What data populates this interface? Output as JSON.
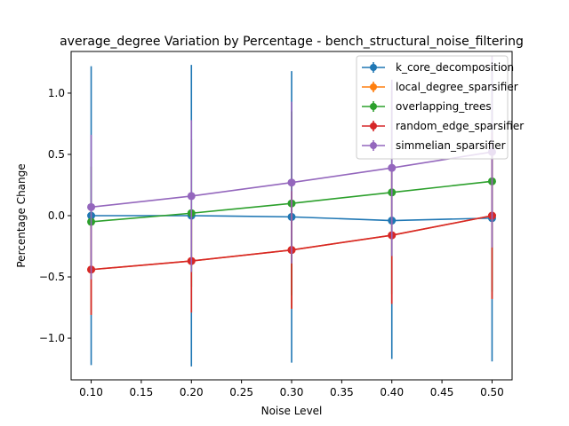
{
  "chart_data": {
    "type": "line",
    "title": "average_degree Variation by Percentage - bench_structural_noise_filtering",
    "xlabel": "Noise Level",
    "ylabel": "Percentage Change",
    "xlim": [
      0.08,
      0.52
    ],
    "ylim": [
      -1.34,
      1.34
    ],
    "xticks": [
      "0.10",
      "0.15",
      "0.20",
      "0.25",
      "0.30",
      "0.35",
      "0.40",
      "0.45",
      "0.50"
    ],
    "yticks": [
      "−1.0",
      "−0.5",
      "0.0",
      "0.5",
      "1.0"
    ],
    "grid": false,
    "legend_position": "top-right",
    "x": [
      0.1,
      0.2,
      0.3,
      0.4,
      0.5
    ],
    "series": [
      {
        "name": "k_core_decomposition",
        "color": "#1f77b4",
        "values": [
          0.0,
          0.0,
          -0.01,
          -0.04,
          -0.02
        ],
        "errors": [
          1.22,
          1.23,
          1.19,
          1.13,
          1.17
        ]
      },
      {
        "name": "local_degree_sparsifier",
        "color": "#ff7f0e",
        "values": [
          -0.44,
          -0.37,
          -0.28,
          -0.16,
          0.0
        ],
        "errors": [
          0.37,
          0.42,
          0.48,
          0.56,
          0.68
        ]
      },
      {
        "name": "overlapping_trees",
        "color": "#2ca02c",
        "values": [
          -0.05,
          0.02,
          0.1,
          0.19,
          0.28
        ],
        "errors": [
          0.45,
          0.6,
          0.75,
          0.83,
          0.9
        ]
      },
      {
        "name": "random_edge_sparsifier",
        "color": "#d62728",
        "values": [
          -0.44,
          -0.37,
          -0.28,
          -0.16,
          0.0
        ],
        "errors": [
          0.37,
          0.42,
          0.48,
          0.56,
          0.68
        ]
      },
      {
        "name": "simmelian_sparsifier",
        "color": "#9467bd",
        "values": [
          0.07,
          0.16,
          0.27,
          0.39,
          0.52
        ],
        "errors": [
          0.59,
          0.62,
          0.66,
          0.72,
          0.78
        ]
      }
    ]
  }
}
